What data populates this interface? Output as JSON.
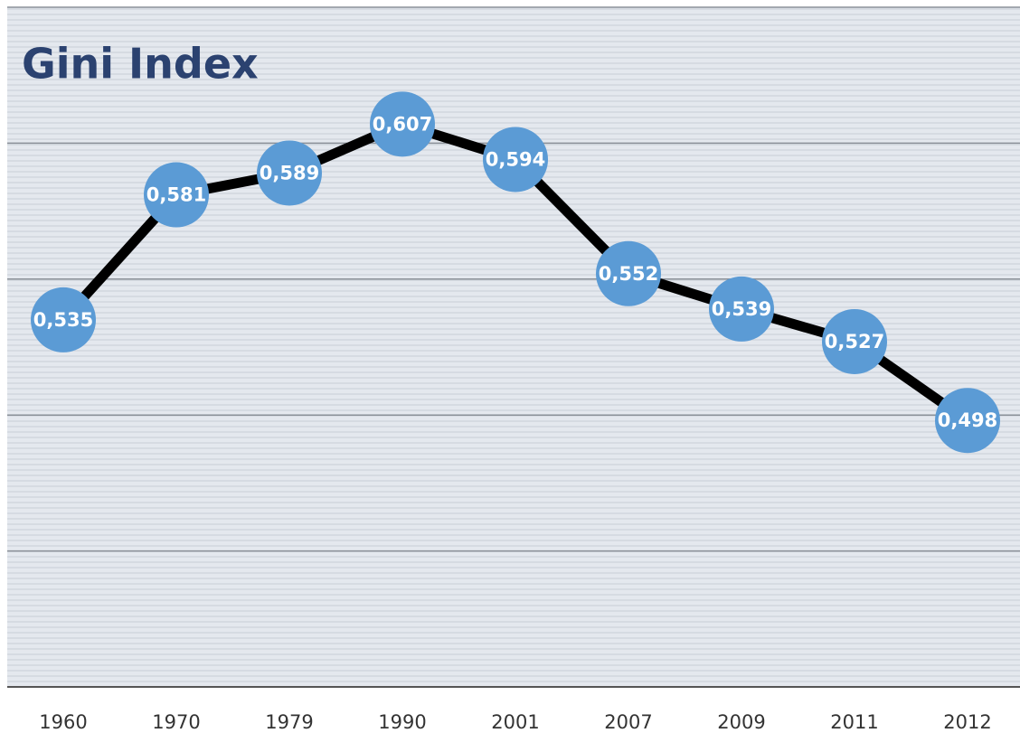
{
  "chart_data": {
    "type": "line",
    "title": "Gini Index",
    "categories": [
      "1960",
      "1970",
      "1979",
      "1990",
      "2001",
      "2007",
      "2009",
      "2011",
      "2012"
    ],
    "values": [
      0.535,
      0.581,
      0.589,
      0.607,
      0.594,
      0.552,
      0.539,
      0.527,
      0.498
    ],
    "value_labels": [
      "0,535",
      "0,581",
      "0,589",
      "0,607",
      "0,594",
      "0,552",
      "0,539",
      "0,527",
      "0,498"
    ],
    "color": "#5b9bd5",
    "line_color": "#000000",
    "ylim": [
      0.4,
      0.65
    ],
    "yticks": [
      0.4,
      0.45,
      0.5,
      0.55,
      0.6,
      0.65
    ],
    "grid": true
  }
}
